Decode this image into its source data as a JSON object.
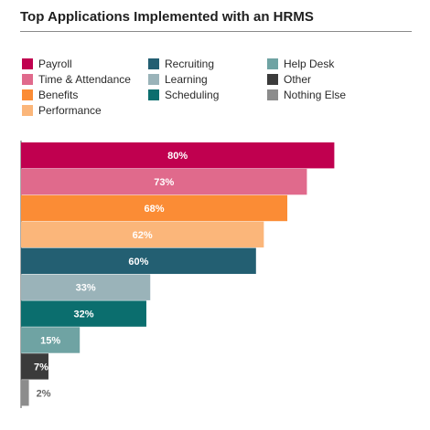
{
  "chart_data": {
    "type": "bar",
    "orientation": "horizontal",
    "title": "Top Applications Implemented with an HRMS",
    "categories": [
      "Payroll",
      "Time & Attendance",
      "Benefits",
      "Performance",
      "Recruiting",
      "Learning",
      "Scheduling",
      "Help Desk",
      "Other",
      "Nothing Else"
    ],
    "values": [
      80,
      73,
      68,
      62,
      60,
      33,
      32,
      15,
      7,
      2
    ],
    "value_labels": [
      "80%",
      "73%",
      "68%",
      "62%",
      "60%",
      "33%",
      "32%",
      "15%",
      "7%",
      "2%"
    ],
    "colors": [
      "#c0004f",
      "#e06a8c",
      "#fb8c35",
      "#fbb67a",
      "#235f72",
      "#9ab3b9",
      "#0b6e6e",
      "#6fa3a3",
      "#3b3b3b",
      "#8c8c8c"
    ],
    "label_colors": [
      "#ffffff",
      "#ffffff",
      "#ffffff",
      "#ffffff",
      "#ffffff",
      "#ffffff",
      "#ffffff",
      "#ffffff",
      "#ffffff",
      "#666666"
    ],
    "xlim": [
      0,
      100
    ],
    "grid": false,
    "legend_position": "top"
  }
}
